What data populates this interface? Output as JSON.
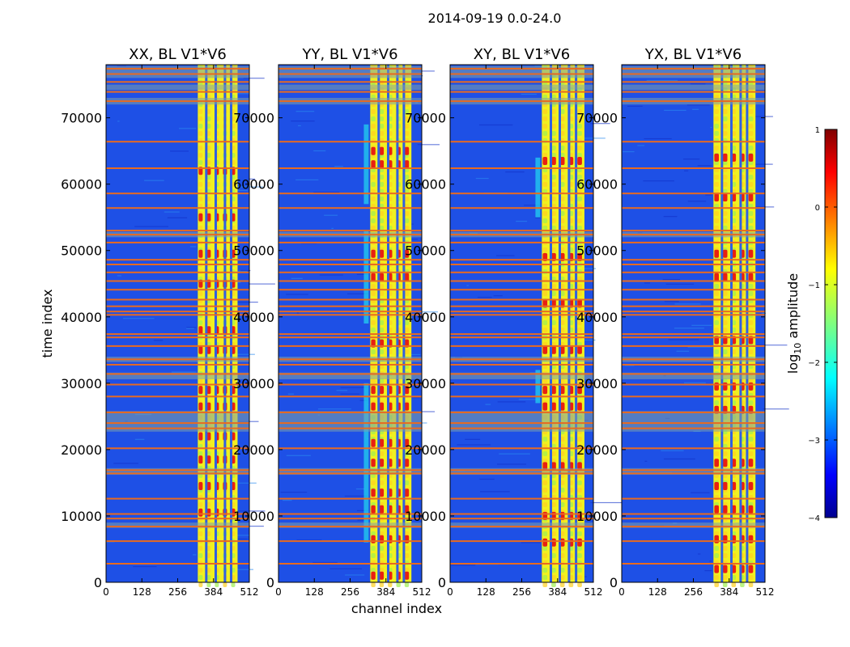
{
  "chart_data": {
    "type": "heatmap",
    "title": "2014-09-19 0.0-24.0",
    "xlabel": "channel index",
    "ylabel": "time index",
    "xlim": [
      0,
      512
    ],
    "ylim": [
      0,
      78000
    ],
    "x_ticks": [
      0,
      128,
      256,
      384,
      512
    ],
    "y_ticks": [
      0,
      10000,
      20000,
      30000,
      40000,
      50000,
      60000,
      70000
    ],
    "colorbar": {
      "label_prefix": "log",
      "label_sub": "10",
      "label_suffix": " amplitude",
      "range": [
        -4,
        1
      ],
      "ticks": [
        1,
        0,
        -1,
        -2,
        -3,
        -4
      ],
      "tick_labels": [
        "1",
        "0",
        "−1",
        "−2",
        "−3",
        "−4"
      ],
      "colormap": "jet"
    },
    "panels": [
      {
        "title": "XX, BL V1*V6",
        "band_start": 325,
        "band_end": 470,
        "column_gaps": [
          358,
          392,
          425,
          447
        ],
        "hot_rows": [
          10500,
          14500,
          18500,
          22000,
          26500,
          29000,
          35000,
          38000,
          45000,
          49500,
          55000,
          62000
        ],
        "ramp_rows": [],
        "has_xlabel": false
      },
      {
        "title": "YY, BL V1*V6",
        "band_start": 325,
        "band_end": 475,
        "column_gaps": [
          358,
          392,
          425,
          448
        ],
        "hot_rows": [
          1000,
          6500,
          11000,
          13500,
          18000,
          21000,
          26500,
          29000,
          36000,
          46000,
          49500,
          63000,
          65000
        ],
        "ramp_rows": [
          [
            6000,
            30000
          ],
          [
            39000,
            53000
          ],
          [
            57000,
            69000
          ]
        ],
        "has_xlabel": true
      },
      {
        "title": "XY, BL V1*V6",
        "band_start": 325,
        "band_end": 480,
        "column_gaps": [
          360,
          392,
          425,
          450
        ],
        "hot_rows": [
          6000,
          10000,
          17500,
          26500,
          29000,
          35000,
          42000,
          49000,
          63500
        ],
        "ramp_rows": [
          [
            27000,
            32000
          ],
          [
            55000,
            64000
          ]
        ],
        "has_xlabel": false
      },
      {
        "title": "YX, BL V1*V6",
        "band_start": 325,
        "band_end": 478,
        "column_gaps": [
          358,
          392,
          425,
          448
        ],
        "hot_rows": [
          2000,
          6500,
          11000,
          14500,
          18000,
          26000,
          29500,
          36500,
          46000,
          49500,
          58000,
          64000
        ],
        "ramp_rows": [],
        "has_xlabel": false
      }
    ],
    "flag_rows": [
      2800,
      6200,
      8400,
      9600,
      10300,
      12600,
      16400,
      16900,
      20200,
      23200,
      24000,
      25600,
      28000,
      29800,
      31400,
      32800,
      33600,
      35600,
      36900,
      37400,
      40300,
      40800,
      41600,
      42600,
      44100,
      45400,
      46700,
      47900,
      48600,
      51200,
      52400,
      53000,
      56400,
      58600,
      62400,
      66400,
      72500,
      73900,
      75400,
      76600,
      77400
    ],
    "gray_rows": [
      [
        8200,
        9000
      ],
      [
        16200,
        17200
      ],
      [
        22700,
        25800
      ],
      [
        30600,
        31600
      ],
      [
        33200,
        34000
      ],
      [
        52000,
        52800
      ],
      [
        72000,
        73000
      ],
      [
        74200,
        75000
      ],
      [
        76000,
        77800
      ]
    ]
  }
}
